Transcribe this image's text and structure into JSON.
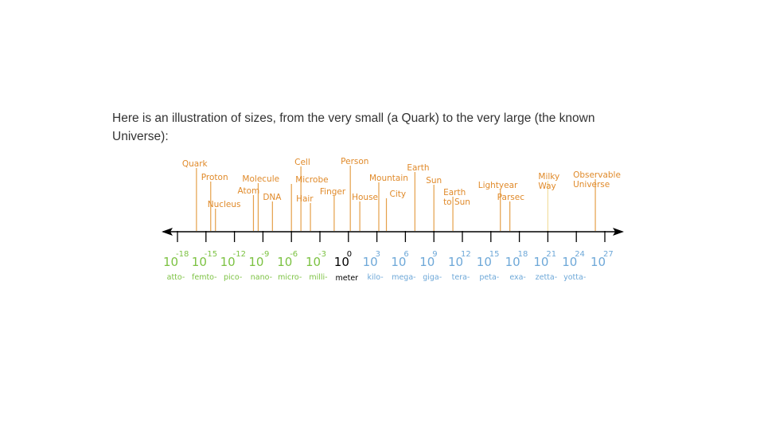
{
  "intro": {
    "line1": "Here is an illustration of sizes, from the very small (a Quark) to the very large (the known",
    "line2": "Universe):"
  },
  "colors": {
    "axis": "#000000",
    "object_label": "#e08a2a",
    "object_line": "#e5a04a",
    "small_powers": "#7cc242",
    "unit_power": "#000000",
    "large_powers": "#6ea8d8",
    "milky_way_line": "#f2dfa0"
  },
  "scale": {
    "exponent_range": [
      -18,
      27
    ],
    "ticks": [
      {
        "base": "10",
        "exp": "-18",
        "prefix": "atto-",
        "tone": "small"
      },
      {
        "base": "10",
        "exp": "-15",
        "prefix": "femto-",
        "tone": "small"
      },
      {
        "base": "10",
        "exp": "-12",
        "prefix": "pico-",
        "tone": "small"
      },
      {
        "base": "10",
        "exp": "-9",
        "prefix": "nano-",
        "tone": "small"
      },
      {
        "base": "10",
        "exp": "-6",
        "prefix": "micro-",
        "tone": "small"
      },
      {
        "base": "10",
        "exp": "-3",
        "prefix": "milli-",
        "tone": "small"
      },
      {
        "base": "10",
        "exp": "0",
        "prefix": "meter",
        "tone": "unit"
      },
      {
        "base": "10",
        "exp": "3",
        "prefix": "kilo-",
        "tone": "large"
      },
      {
        "base": "10",
        "exp": "6",
        "prefix": "mega-",
        "tone": "large"
      },
      {
        "base": "10",
        "exp": "9",
        "prefix": "giga-",
        "tone": "large"
      },
      {
        "base": "10",
        "exp": "12",
        "prefix": "tera-",
        "tone": "large"
      },
      {
        "base": "10",
        "exp": "15",
        "prefix": "peta-",
        "tone": "large"
      },
      {
        "base": "10",
        "exp": "18",
        "prefix": "exa-",
        "tone": "large"
      },
      {
        "base": "10",
        "exp": "21",
        "prefix": "zetta-",
        "tone": "large"
      },
      {
        "base": "10",
        "exp": "24",
        "prefix": "yotta-",
        "tone": "large"
      },
      {
        "base": "10",
        "exp": "27",
        "prefix": "",
        "tone": "large"
      }
    ],
    "objects": [
      {
        "label": [
          "Quark"
        ],
        "exponent": -16
      },
      {
        "label": [
          "Proton"
        ],
        "exponent": -14.5
      },
      {
        "label": [
          "Nucleus"
        ],
        "exponent": -14
      },
      {
        "label": [
          "Molecule"
        ],
        "exponent": -9.5
      },
      {
        "label": [
          "Atom"
        ],
        "exponent": -10
      },
      {
        "label": [
          "DNA"
        ],
        "exponent": -8
      },
      {
        "label": [
          "Cell"
        ],
        "exponent": -5
      },
      {
        "label": [
          "Microbe"
        ],
        "exponent": -6
      },
      {
        "label": [
          "Hair"
        ],
        "exponent": -4
      },
      {
        "label": [
          "Finger"
        ],
        "exponent": -1.5
      },
      {
        "label": [
          "Person"
        ],
        "exponent": 0.2
      },
      {
        "label": [
          "House"
        ],
        "exponent": 1.2
      },
      {
        "label": [
          "Mountain"
        ],
        "exponent": 3.2
      },
      {
        "label": [
          "City"
        ],
        "exponent": 4
      },
      {
        "label": [
          "Earth"
        ],
        "exponent": 7
      },
      {
        "label": [
          "Sun"
        ],
        "exponent": 9
      },
      {
        "label": [
          "Earth",
          "to Sun"
        ],
        "exponent": 11
      },
      {
        "label": [
          "Lightyear"
        ],
        "exponent": 16
      },
      {
        "label": [
          "Parsec"
        ],
        "exponent": 17
      },
      {
        "label": [
          "Milky",
          "Way"
        ],
        "exponent": 21
      },
      {
        "label": [
          "Observable",
          "Universe"
        ],
        "exponent": 26
      }
    ]
  }
}
